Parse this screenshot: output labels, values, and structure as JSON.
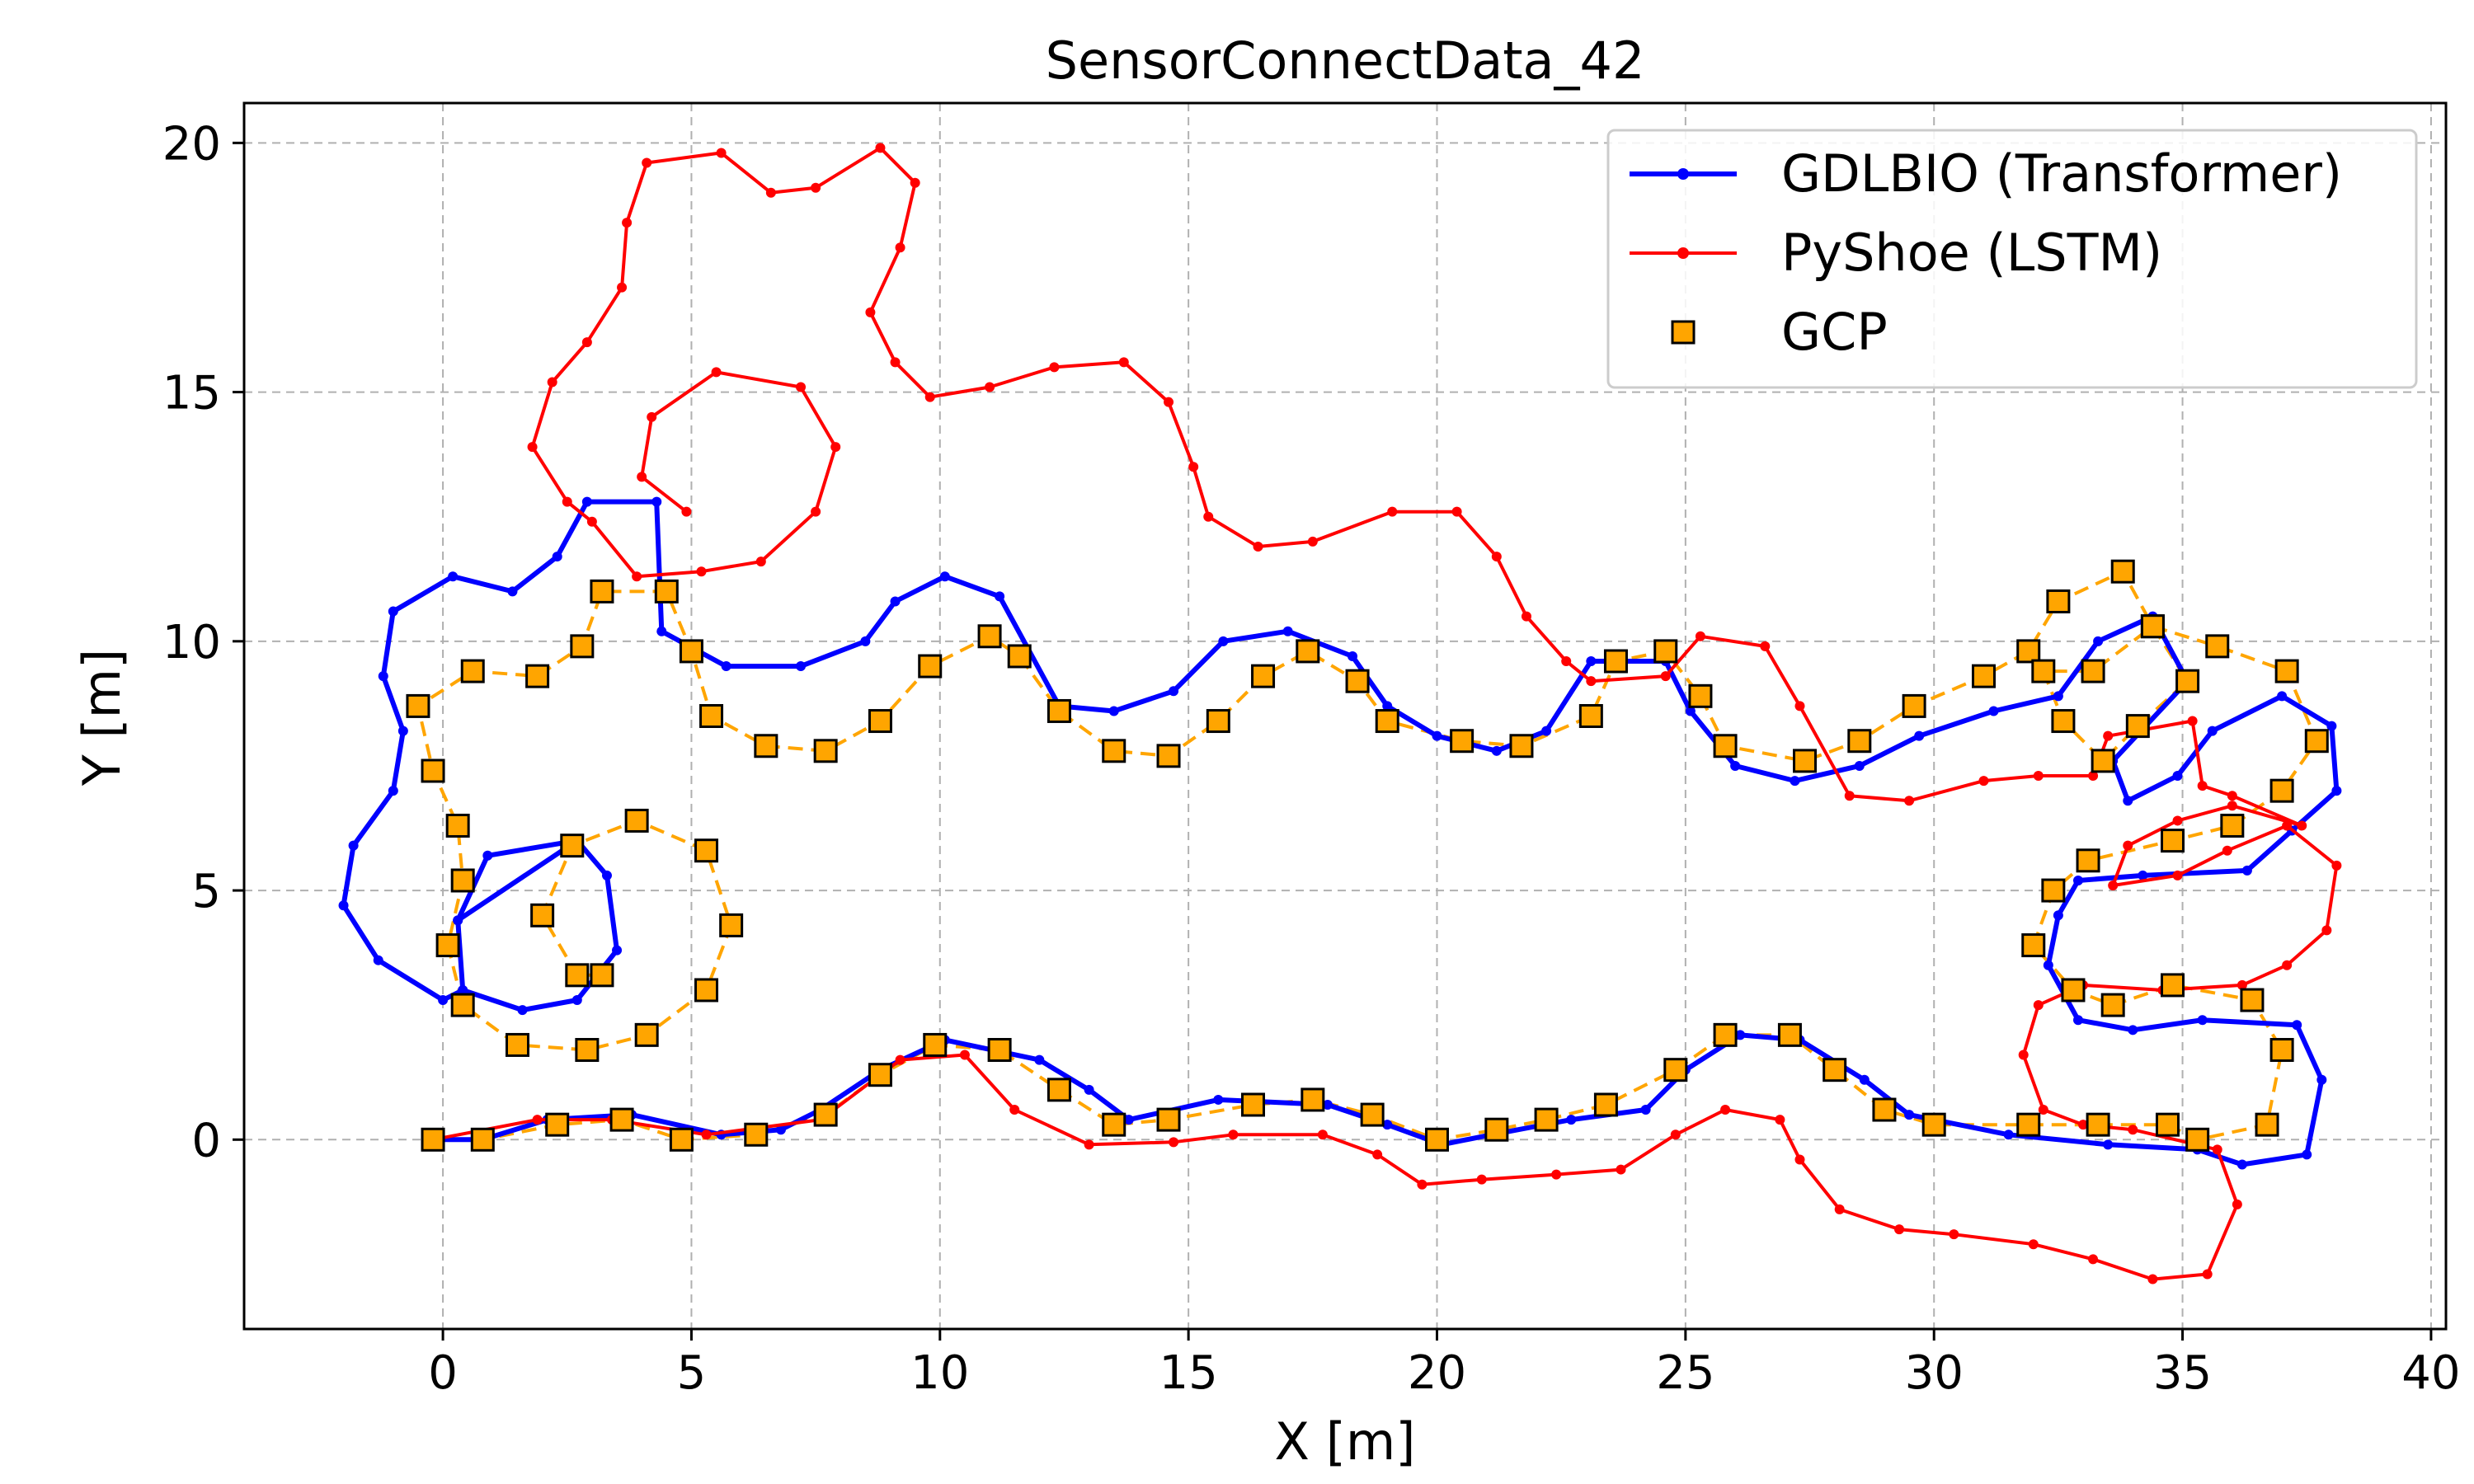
{
  "chart_data": {
    "type": "line",
    "title": "SensorConnectData_42",
    "xlabel": "X [m]",
    "ylabel": "Y [m]",
    "xlim": [
      -4,
      40.3
    ],
    "ylim": [
      -3.8,
      20.8
    ],
    "xticks": [
      0,
      5,
      10,
      15,
      20,
      25,
      30,
      35,
      40
    ],
    "yticks": [
      0,
      5,
      10,
      15,
      20
    ],
    "grid": true,
    "legend_position": "top-right",
    "colors": {
      "gdlbio": "#0000ff",
      "pyshoe": "#ff0000",
      "gcp_fill": "#ffa500",
      "gcp_line": "#ffa500",
      "grid": "#b0b0b0"
    },
    "series": [
      {
        "id": "gdlbio",
        "name": "GDLBIO (Transformer)",
        "points": [
          [
            2.7,
            6
          ],
          [
            3.3,
            5.3
          ],
          [
            3.5,
            3.8
          ],
          [
            2.7,
            2.8
          ],
          [
            1.6,
            2.6
          ],
          [
            0.4,
            3
          ],
          [
            0.3,
            4.4
          ],
          [
            0.9,
            5.7
          ],
          [
            2.7,
            6
          ],
          [
            2.7,
            6
          ],
          [
            0.3,
            4.4
          ],
          [
            0.4,
            3
          ],
          [
            0,
            2.8
          ],
          [
            -1.3,
            3.6
          ],
          [
            -2,
            4.7
          ],
          [
            -1.8,
            5.9
          ],
          [
            -1,
            7
          ],
          [
            -0.8,
            8.2
          ],
          [
            -1.2,
            9.3
          ],
          [
            -1,
            10.6
          ],
          [
            0.2,
            11.3
          ],
          [
            1.4,
            11
          ],
          [
            2.3,
            11.7
          ],
          [
            2.9,
            12.8
          ],
          [
            4.3,
            12.8
          ],
          [
            4.4,
            10.2
          ],
          [
            5.7,
            9.5
          ],
          [
            7.2,
            9.5
          ],
          [
            8.5,
            10
          ],
          [
            9.1,
            10.8
          ],
          [
            10.1,
            11.3
          ],
          [
            11.2,
            10.9
          ],
          [
            12.4,
            8.7
          ],
          [
            13.5,
            8.6
          ],
          [
            14.7,
            9
          ],
          [
            15.7,
            10
          ],
          [
            17,
            10.2
          ],
          [
            18.3,
            9.7
          ],
          [
            19,
            8.7
          ],
          [
            20,
            8.1
          ],
          [
            21.2,
            7.8
          ],
          [
            22.2,
            8.2
          ],
          [
            23.1,
            9.6
          ],
          [
            24.6,
            9.6
          ],
          [
            25.1,
            8.6
          ],
          [
            26,
            7.5
          ],
          [
            27.2,
            7.2
          ],
          [
            28.5,
            7.5
          ],
          [
            29.7,
            8.1
          ],
          [
            31.2,
            8.6
          ],
          [
            32.5,
            8.9
          ],
          [
            33.3,
            10
          ],
          [
            34.4,
            10.5
          ],
          [
            35.1,
            9.2
          ],
          [
            33.6,
            7.6
          ],
          [
            33.9,
            6.8
          ],
          [
            34.9,
            7.3
          ],
          [
            35.6,
            8.2
          ],
          [
            37,
            8.9
          ],
          [
            38,
            8.3
          ],
          [
            38.1,
            7
          ],
          [
            37.2,
            6.2
          ],
          [
            36.3,
            5.4
          ],
          [
            34.2,
            5.3
          ],
          [
            32.9,
            5.2
          ],
          [
            32.5,
            4.5
          ],
          [
            32.3,
            3.5
          ],
          [
            32.9,
            2.4
          ],
          [
            34,
            2.2
          ],
          [
            35.4,
            2.4
          ],
          [
            37.3,
            2.3
          ],
          [
            37.8,
            1.2
          ],
          [
            37.5,
            -0.3
          ],
          [
            36.2,
            -0.5
          ],
          [
            35.3,
            -0.2
          ],
          [
            33.5,
            -0.1
          ],
          [
            31.5,
            0.1
          ],
          [
            29.5,
            0.5
          ],
          [
            28.6,
            1.2
          ],
          [
            27.3,
            2
          ],
          [
            26.1,
            2.1
          ],
          [
            25,
            1.4
          ],
          [
            24.2,
            0.6
          ],
          [
            22.7,
            0.4
          ],
          [
            21.1,
            0.1
          ],
          [
            20.1,
            -0.1
          ],
          [
            19,
            0.3
          ],
          [
            17.8,
            0.7
          ],
          [
            15.6,
            0.8
          ],
          [
            13.8,
            0.4
          ],
          [
            13,
            1
          ],
          [
            12,
            1.6
          ],
          [
            10.1,
            2
          ],
          [
            8.8,
            1.4
          ],
          [
            7.6,
            0.6
          ],
          [
            6.8,
            0.2
          ],
          [
            5.6,
            0.1
          ],
          [
            3.8,
            0.5
          ],
          [
            2.1,
            0.4
          ],
          [
            0.8,
            0
          ],
          [
            -0.2,
            0
          ]
        ]
      },
      {
        "id": "pyshoe",
        "name": "PyShoe (LSTM)",
        "points": [
          [
            -0.2,
            0
          ],
          [
            1.9,
            0.4
          ],
          [
            3.4,
            0.4
          ],
          [
            5.3,
            0.1
          ],
          [
            7.6,
            0.4
          ],
          [
            9.2,
            1.6
          ],
          [
            10.5,
            1.7
          ],
          [
            11.5,
            0.6
          ],
          [
            13,
            -0.1
          ],
          [
            14.7,
            -0.05
          ],
          [
            15.9,
            0.1
          ],
          [
            17.7,
            0.1
          ],
          [
            18.8,
            -0.3
          ],
          [
            19.7,
            -0.9
          ],
          [
            20.9,
            -0.8
          ],
          [
            22.4,
            -0.7
          ],
          [
            23.7,
            -0.6
          ],
          [
            24.8,
            0.1
          ],
          [
            25.8,
            0.6
          ],
          [
            26.9,
            0.4
          ],
          [
            27.3,
            -0.4
          ],
          [
            28.1,
            -1.4
          ],
          [
            29.3,
            -1.8
          ],
          [
            30.4,
            -1.9
          ],
          [
            32,
            -2.1
          ],
          [
            33.2,
            -2.4
          ],
          [
            34.4,
            -2.8
          ],
          [
            35.5,
            -2.7
          ],
          [
            36.1,
            -1.3
          ],
          [
            35.7,
            -0.2
          ],
          [
            34,
            0.2
          ],
          [
            33,
            0.3
          ],
          [
            32.2,
            0.6
          ],
          [
            31.8,
            1.7
          ],
          [
            32.1,
            2.7
          ],
          [
            33,
            3.1
          ],
          [
            34.6,
            3
          ],
          [
            36.2,
            3.1
          ],
          [
            37.1,
            3.5
          ],
          [
            37.9,
            4.2
          ],
          [
            38.1,
            5.5
          ],
          [
            37.1,
            6.3
          ],
          [
            35.9,
            5.8
          ],
          [
            34.9,
            5.3
          ],
          [
            33.6,
            5.1
          ],
          [
            33.9,
            5.9
          ],
          [
            34.9,
            6.4
          ],
          [
            36,
            6.7
          ],
          [
            37.4,
            6.3
          ],
          [
            36,
            6.9
          ],
          [
            35.4,
            7.1
          ],
          [
            35.2,
            8.4
          ],
          [
            33.5,
            8.1
          ],
          [
            33.2,
            7.3
          ],
          [
            32.1,
            7.3
          ],
          [
            31,
            7.2
          ],
          [
            29.5,
            6.8
          ],
          [
            28.3,
            6.9
          ],
          [
            27.3,
            8.7
          ],
          [
            26.6,
            9.9
          ],
          [
            25.3,
            10.1
          ],
          [
            24.6,
            9.3
          ],
          [
            23.1,
            9.2
          ],
          [
            22.6,
            9.6
          ],
          [
            21.8,
            10.5
          ],
          [
            21.2,
            11.7
          ],
          [
            20.4,
            12.6
          ],
          [
            19.1,
            12.6
          ],
          [
            17.5,
            12
          ],
          [
            16.4,
            11.9
          ],
          [
            15.4,
            12.5
          ],
          [
            15.1,
            13.5
          ],
          [
            14.6,
            14.8
          ],
          [
            13.7,
            15.6
          ],
          [
            12.3,
            15.5
          ],
          [
            11,
            15.1
          ],
          [
            9.8,
            14.9
          ],
          [
            9.1,
            15.6
          ],
          [
            8.6,
            16.6
          ],
          [
            9.2,
            17.9
          ],
          [
            9.5,
            19.2
          ],
          [
            8.8,
            19.9
          ],
          [
            7.5,
            19.1
          ],
          [
            6.6,
            19
          ],
          [
            5.6,
            19.8
          ],
          [
            4.1,
            19.6
          ],
          [
            3.7,
            18.4
          ],
          [
            3.6,
            17.1
          ],
          [
            2.9,
            16
          ],
          [
            2.2,
            15.2
          ],
          [
            1.8,
            13.9
          ],
          [
            2.5,
            12.8
          ],
          [
            3,
            12.4
          ],
          [
            3.9,
            11.3
          ],
          [
            5.2,
            11.4
          ],
          [
            6.4,
            11.6
          ],
          [
            7.5,
            12.6
          ],
          [
            7.9,
            13.9
          ],
          [
            7.2,
            15.1
          ],
          [
            5.5,
            15.4
          ],
          [
            4.2,
            14.5
          ],
          [
            4,
            13.3
          ],
          [
            4.9,
            12.6
          ]
        ]
      },
      {
        "id": "gcp",
        "name": "GCP",
        "points": [
          [
            3.2,
            3.3
          ],
          [
            2.7,
            3.3
          ],
          [
            2,
            4.5
          ],
          [
            2.6,
            5.9
          ],
          [
            3.9,
            6.4
          ],
          [
            5.3,
            5.8
          ],
          [
            5.8,
            4.3
          ],
          [
            5.3,
            3
          ],
          [
            4.1,
            2.1
          ],
          [
            2.9,
            1.8
          ],
          [
            1.5,
            1.9
          ],
          [
            0.4,
            2.7
          ],
          [
            0.1,
            3.9
          ],
          [
            0.4,
            5.2
          ],
          [
            0.3,
            6.3
          ],
          [
            -0.2,
            7.4
          ],
          [
            -0.5,
            8.7
          ],
          [
            0.6,
            9.4
          ],
          [
            1.9,
            9.3
          ],
          [
            2.8,
            9.9
          ],
          [
            3.2,
            11
          ],
          [
            4.5,
            11
          ],
          [
            5,
            9.8
          ],
          [
            5.4,
            8.5
          ],
          [
            6.5,
            7.9
          ],
          [
            7.7,
            7.8
          ],
          [
            8.8,
            8.4
          ],
          [
            9.8,
            9.5
          ],
          [
            11,
            10.1
          ],
          [
            11.6,
            9.7
          ],
          [
            12.4,
            8.6
          ],
          [
            13.5,
            7.8
          ],
          [
            14.6,
            7.7
          ],
          [
            15.6,
            8.4
          ],
          [
            16.5,
            9.3
          ],
          [
            17.4,
            9.8
          ],
          [
            18.4,
            9.2
          ],
          [
            19,
            8.4
          ],
          [
            20.5,
            8
          ],
          [
            21.7,
            7.9
          ],
          [
            23.1,
            8.5
          ],
          [
            23.6,
            9.6
          ],
          [
            24.6,
            9.8
          ],
          [
            25.3,
            8.9
          ],
          [
            25.8,
            7.9
          ],
          [
            27.4,
            7.6
          ],
          [
            28.5,
            8
          ],
          [
            29.6,
            8.7
          ],
          [
            31,
            9.3
          ],
          [
            31.9,
            9.8
          ],
          [
            32.5,
            10.8
          ],
          [
            33.8,
            11.4
          ],
          [
            34.4,
            10.3
          ],
          [
            35.1,
            9.2
          ],
          [
            34.1,
            8.3
          ],
          [
            33.4,
            7.6
          ],
          [
            32.6,
            8.4
          ],
          [
            32.2,
            9.4
          ],
          [
            33.2,
            9.4
          ],
          [
            34.4,
            10.3
          ],
          [
            35.7,
            9.9
          ],
          [
            37.1,
            9.4
          ],
          [
            37.7,
            8
          ],
          [
            37,
            7
          ],
          [
            36,
            6.3
          ],
          [
            34.8,
            6
          ],
          [
            33.1,
            5.6
          ],
          [
            32.4,
            5
          ],
          [
            32,
            3.9
          ],
          [
            32.8,
            3
          ],
          [
            33.6,
            2.7
          ],
          [
            34.8,
            3.1
          ],
          [
            36.4,
            2.8
          ],
          [
            37,
            1.8
          ],
          [
            36.7,
            0.3
          ],
          [
            35.3,
            0
          ],
          [
            34.7,
            0.3
          ],
          [
            33.3,
            0.3
          ],
          [
            31.9,
            0.3
          ],
          [
            30,
            0.3
          ],
          [
            29,
            0.6
          ],
          [
            28,
            1.4
          ],
          [
            27.1,
            2.1
          ],
          [
            25.8,
            2.1
          ],
          [
            24.8,
            1.4
          ],
          [
            23.4,
            0.7
          ],
          [
            22.2,
            0.4
          ],
          [
            21.2,
            0.2
          ],
          [
            20,
            0
          ],
          [
            18.7,
            0.5
          ],
          [
            17.5,
            0.8
          ],
          [
            16.3,
            0.7
          ],
          [
            14.6,
            0.4
          ],
          [
            13.5,
            0.3
          ],
          [
            12.4,
            1
          ],
          [
            11.2,
            1.8
          ],
          [
            9.9,
            1.9
          ],
          [
            8.8,
            1.3
          ],
          [
            7.7,
            0.5
          ],
          [
            6.3,
            0.1
          ],
          [
            4.8,
            0
          ],
          [
            3.6,
            0.4
          ],
          [
            2.3,
            0.3
          ],
          [
            0.8,
            0
          ],
          [
            -0.2,
            0
          ]
        ]
      }
    ]
  }
}
